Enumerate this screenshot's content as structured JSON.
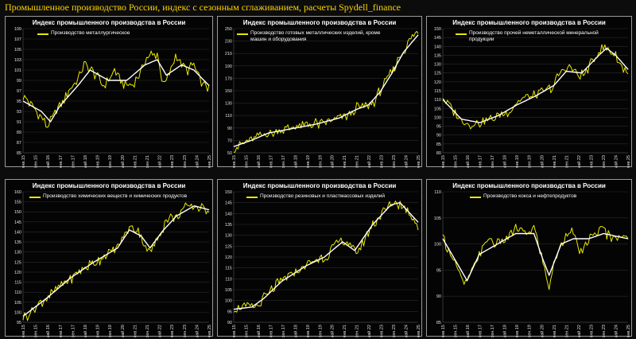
{
  "page_title": "Промышленное производство России, индекс с сезонным сглаживанием, расчеты Spydell_finance",
  "colors": {
    "actual": "#e8e800",
    "smoothed": "#ffffff",
    "background": "#040404",
    "title_text": "#ffd400"
  },
  "chart_data": [
    {
      "type": "line",
      "title": "Индекс промышленного производства в России",
      "legend": "top-left",
      "ylim": [
        85,
        109
      ],
      "yticks": [
        85,
        87,
        89,
        91,
        93,
        95,
        97,
        99,
        101,
        103,
        105,
        107,
        109
      ],
      "xticks": [
        "янв.15",
        "сен.15",
        "май.16",
        "янв.17",
        "сен.17",
        "май.18",
        "янв.19",
        "сен.19",
        "май.20",
        "янв.21",
        "сен.21",
        "май.22",
        "янв.23",
        "сен.23",
        "май.24",
        "янв.25"
      ],
      "series": [
        {
          "name": "Производство металлургическое",
          "anchors": [
            [
              0,
              96
            ],
            [
              6,
              94
            ],
            [
              12,
              92
            ],
            [
              16,
              90
            ],
            [
              20,
              92
            ],
            [
              24,
              94
            ],
            [
              30,
              97
            ],
            [
              36,
              99
            ],
            [
              40,
              102
            ],
            [
              44,
              101
            ],
            [
              48,
              100
            ],
            [
              52,
              98
            ],
            [
              56,
              99
            ],
            [
              60,
              101
            ],
            [
              64,
              99
            ],
            [
              68,
              98
            ],
            [
              72,
              98
            ],
            [
              76,
              100
            ],
            [
              80,
              103
            ],
            [
              84,
              104
            ],
            [
              88,
              104
            ],
            [
              90,
              101
            ],
            [
              92,
              98
            ],
            [
              96,
              100
            ],
            [
              100,
              104
            ],
            [
              104,
              102
            ],
            [
              108,
              101
            ],
            [
              112,
              102
            ],
            [
              116,
              99
            ],
            [
              118,
              98
            ],
            [
              120,
              98
            ],
            [
              122,
              97
            ]
          ]
        }
      ],
      "smoothed": [
        [
          0,
          95
        ],
        [
          12,
          93
        ],
        [
          18,
          91
        ],
        [
          24,
          94
        ],
        [
          36,
          98
        ],
        [
          44,
          101
        ],
        [
          56,
          99
        ],
        [
          68,
          99
        ],
        [
          80,
          102
        ],
        [
          88,
          103
        ],
        [
          94,
          100
        ],
        [
          104,
          102
        ],
        [
          112,
          101
        ],
        [
          122,
          98
        ]
      ]
    },
    {
      "type": "line",
      "title": "Индекс промышленного производства в России",
      "legend": "top-left",
      "ylim": [
        50,
        250
      ],
      "yticks": [
        50,
        70,
        90,
        110,
        130,
        150,
        170,
        190,
        210,
        230,
        250
      ],
      "xticks": [
        "янв.15",
        "сен.15",
        "май.16",
        "янв.17",
        "сен.17",
        "май.18",
        "янв.19",
        "сен.19",
        "май.20",
        "янв.21",
        "сен.21",
        "май.22",
        "янв.23",
        "сен.23",
        "май.24",
        "янв.25"
      ],
      "series": [
        {
          "name": "Производство готовых металлических изделий, кроме машин и оборудования",
          "anchors": [
            [
              0,
              58
            ],
            [
              8,
              66
            ],
            [
              16,
              76
            ],
            [
              24,
              82
            ],
            [
              32,
              86
            ],
            [
              40,
              90
            ],
            [
              48,
              94
            ],
            [
              56,
              97
            ],
            [
              60,
              96
            ],
            [
              64,
              100
            ],
            [
              72,
              106
            ],
            [
              80,
              112
            ],
            [
              84,
              122
            ],
            [
              88,
              126
            ],
            [
              92,
              124
            ],
            [
              96,
              132
            ],
            [
              100,
              150
            ],
            [
              104,
              165
            ],
            [
              108,
              180
            ],
            [
              112,
              200
            ],
            [
              116,
              215
            ],
            [
              120,
              230
            ],
            [
              124,
              240
            ],
            [
              126,
              243
            ]
          ]
        }
      ],
      "smoothed": [
        [
          0,
          60
        ],
        [
          12,
          70
        ],
        [
          24,
          82
        ],
        [
          40,
          89
        ],
        [
          56,
          96
        ],
        [
          72,
          106
        ],
        [
          84,
          120
        ],
        [
          92,
          127
        ],
        [
          100,
          148
        ],
        [
          108,
          178
        ],
        [
          116,
          212
        ],
        [
          126,
          240
        ]
      ]
    },
    {
      "type": "line",
      "title": "Индекс промышленного производства в России",
      "legend": "top-left",
      "ylim": [
        80,
        150
      ],
      "yticks": [
        80,
        85,
        90,
        95,
        100,
        105,
        110,
        115,
        120,
        125,
        130,
        135,
        140,
        145,
        150
      ],
      "xticks": [
        "янв.15",
        "сен.15",
        "май.16",
        "янв.17",
        "сен.17",
        "май.18",
        "янв.19",
        "сен.19",
        "май.20",
        "янв.21",
        "сен.21",
        "май.22",
        "янв.23",
        "сен.23",
        "май.24",
        "янв.25"
      ],
      "series": [
        {
          "name": "Производство прочей неметаллической минеральной продукции",
          "anchors": [
            [
              0,
              111
            ],
            [
              6,
              105
            ],
            [
              12,
              98
            ],
            [
              18,
              96
            ],
            [
              24,
              97
            ],
            [
              30,
              99
            ],
            [
              36,
              101
            ],
            [
              42,
              103
            ],
            [
              48,
              108
            ],
            [
              54,
              112
            ],
            [
              60,
              112
            ],
            [
              66,
              115
            ],
            [
              72,
              118
            ],
            [
              76,
              125
            ],
            [
              80,
              128
            ],
            [
              84,
              127
            ],
            [
              88,
              124
            ],
            [
              92,
              124
            ],
            [
              96,
              130
            ],
            [
              100,
              136
            ],
            [
              104,
              139
            ],
            [
              108,
              138
            ],
            [
              112,
              134
            ],
            [
              116,
              128
            ],
            [
              120,
              126
            ]
          ]
        }
      ],
      "smoothed": [
        [
          0,
          110
        ],
        [
          12,
          99
        ],
        [
          24,
          97
        ],
        [
          36,
          101
        ],
        [
          48,
          107
        ],
        [
          60,
          112
        ],
        [
          72,
          118
        ],
        [
          80,
          126
        ],
        [
          90,
          125
        ],
        [
          100,
          134
        ],
        [
          106,
          139
        ],
        [
          112,
          135
        ],
        [
          120,
          127
        ]
      ]
    },
    {
      "type": "line",
      "title": "Индекс промышленного производства в России",
      "legend": "top-left",
      "ylim": [
        95,
        160
      ],
      "yticks": [
        95,
        100,
        105,
        110,
        115,
        120,
        125,
        130,
        135,
        140,
        145,
        150,
        155,
        160
      ],
      "xticks": [
        "янв.15",
        "сен.15",
        "май.16",
        "янв.17",
        "сен.17",
        "май.18",
        "янв.19",
        "сен.19",
        "май.20",
        "янв.21",
        "сен.21",
        "май.22",
        "янв.23",
        "сен.23",
        "май.24",
        "янв.25"
      ],
      "series": [
        {
          "name": "Производство химических веществ и химических продуктов",
          "anchors": [
            [
              0,
              97
            ],
            [
              8,
              102
            ],
            [
              16,
              107
            ],
            [
              24,
              112
            ],
            [
              32,
              117
            ],
            [
              40,
              121
            ],
            [
              48,
              125
            ],
            [
              56,
              128
            ],
            [
              64,
              132
            ],
            [
              68,
              138
            ],
            [
              72,
              142
            ],
            [
              78,
              141
            ],
            [
              82,
              134
            ],
            [
              86,
              130
            ],
            [
              90,
              135
            ],
            [
              94,
              141
            ],
            [
              98,
              147
            ],
            [
              104,
              148
            ],
            [
              110,
              152
            ],
            [
              116,
              153
            ],
            [
              122,
              152
            ],
            [
              126,
              151
            ]
          ]
        }
      ],
      "smoothed": [
        [
          0,
          98
        ],
        [
          16,
          107
        ],
        [
          32,
          117
        ],
        [
          48,
          125
        ],
        [
          64,
          132
        ],
        [
          72,
          141
        ],
        [
          80,
          138
        ],
        [
          86,
          132
        ],
        [
          94,
          140
        ],
        [
          104,
          148
        ],
        [
          116,
          153
        ],
        [
          126,
          151
        ]
      ]
    },
    {
      "type": "line",
      "title": "Индекс промышленного производства в России",
      "legend": "top-left",
      "ylim": [
        90,
        150
      ],
      "yticks": [
        90,
        95,
        100,
        105,
        110,
        115,
        120,
        125,
        130,
        135,
        140,
        145,
        150
      ],
      "xticks": [
        "янв.15",
        "сен.15",
        "май.16",
        "янв.17",
        "сен.17",
        "май.18",
        "янв.19",
        "сен.19",
        "май.20",
        "янв.21",
        "сен.21",
        "май.22",
        "янв.23",
        "сен.23",
        "май.24",
        "янв.25"
      ],
      "series": [
        {
          "name": "Производство резиновых и пластмассовых изделий",
          "anchors": [
            [
              0,
              96
            ],
            [
              8,
              97
            ],
            [
              16,
              97
            ],
            [
              20,
              101
            ],
            [
              24,
              104
            ],
            [
              32,
              109
            ],
            [
              40,
              113
            ],
            [
              48,
              116
            ],
            [
              56,
              119
            ],
            [
              60,
              120
            ],
            [
              66,
              124
            ],
            [
              72,
              128
            ],
            [
              76,
              126
            ],
            [
              80,
              122
            ],
            [
              84,
              124
            ],
            [
              88,
              130
            ],
            [
              92,
              135
            ],
            [
              96,
              138
            ],
            [
              100,
              141
            ],
            [
              104,
              144
            ],
            [
              108,
              145
            ],
            [
              112,
              143
            ],
            [
              116,
              140
            ],
            [
              120,
              137
            ],
            [
              122,
              134
            ]
          ]
        }
      ],
      "smoothed": [
        [
          0,
          96
        ],
        [
          12,
          97
        ],
        [
          20,
          101
        ],
        [
          32,
          109
        ],
        [
          48,
          116
        ],
        [
          60,
          120
        ],
        [
          72,
          127
        ],
        [
          80,
          123
        ],
        [
          92,
          135
        ],
        [
          104,
          144
        ],
        [
          110,
          145
        ],
        [
          122,
          136
        ]
      ]
    },
    {
      "type": "line",
      "title": "Индекс промышленного производства в России",
      "legend": "top-left",
      "ylim": [
        85,
        110
      ],
      "yticks": [
        85,
        90,
        95,
        100,
        105,
        110
      ],
      "xticks": [
        "янв.15",
        "сен.15",
        "май.16",
        "янв.17",
        "сен.17",
        "май.18",
        "янв.19",
        "сен.19",
        "май.20",
        "янв.21",
        "сен.21",
        "май.22",
        "янв.23",
        "сен.23",
        "май.24",
        "янв.25"
      ],
      "series": [
        {
          "name": "Производство кокса и нефтепродуктов",
          "anchors": [
            [
              0,
              101
            ],
            [
              6,
              98
            ],
            [
              10,
              95
            ],
            [
              14,
              92
            ],
            [
              18,
              94
            ],
            [
              24,
              98
            ],
            [
              30,
              101
            ],
            [
              36,
              100
            ],
            [
              42,
              101
            ],
            [
              48,
              103
            ],
            [
              54,
              102
            ],
            [
              60,
              103
            ],
            [
              64,
              99
            ],
            [
              66,
              96
            ],
            [
              70,
              92
            ],
            [
              74,
              97
            ],
            [
              78,
              100
            ],
            [
              84,
              103
            ],
            [
              88,
              100
            ],
            [
              92,
              98
            ],
            [
              96,
              101
            ],
            [
              100,
              102
            ],
            [
              104,
              103
            ],
            [
              108,
              102
            ],
            [
              112,
              101
            ],
            [
              116,
              102
            ],
            [
              120,
              101
            ],
            [
              122,
              101
            ]
          ]
        }
      ],
      "smoothed": [
        [
          0,
          101
        ],
        [
          10,
          96
        ],
        [
          16,
          93
        ],
        [
          24,
          98
        ],
        [
          36,
          100
        ],
        [
          48,
          102
        ],
        [
          60,
          102
        ],
        [
          66,
          97
        ],
        [
          70,
          94
        ],
        [
          78,
          100
        ],
        [
          86,
          101
        ],
        [
          96,
          101
        ],
        [
          106,
          102
        ],
        [
          122,
          101
        ]
      ]
    }
  ]
}
